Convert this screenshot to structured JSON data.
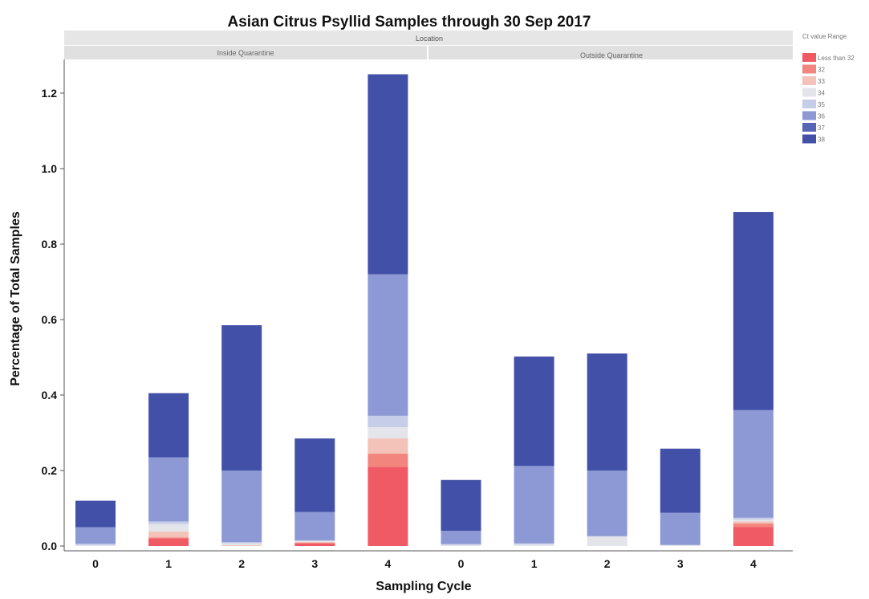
{
  "chart_data": {
    "type": "bar",
    "stacked": true,
    "title": "Asian Citrus Psyllid Samples through 30 Sep 2017",
    "xlabel": "Sampling Cycle",
    "ylabel": "Percentage of Total Samples",
    "ylim": [
      0,
      1.3
    ],
    "yticks": [
      0.0,
      0.2,
      0.4,
      0.6,
      0.8,
      1.0,
      1.2
    ],
    "ytick_labels": [
      "0.0",
      "0.2",
      "0.4",
      "0.6",
      "0.8",
      "1.0",
      "1.2"
    ],
    "grid": false,
    "group_header": "Location",
    "groups": [
      {
        "name": "Inside Quarantine",
        "categories": [
          "0",
          "1",
          "2",
          "3",
          "4"
        ]
      },
      {
        "name": "Outside Quarantine",
        "categories": [
          "0",
          "1",
          "2",
          "3",
          "4"
        ]
      }
    ],
    "legend": {
      "title": "Ct value Range",
      "placement": "right",
      "entries": [
        "Less than 32",
        "32",
        "33",
        "34",
        "35",
        "36",
        "37",
        "38"
      ]
    },
    "series": [
      {
        "name": "Less than 32",
        "color": "#f05a64",
        "values": [
          0,
          0.02,
          0,
          0.007,
          0.21,
          0,
          0,
          0,
          0,
          0.05
        ]
      },
      {
        "name": "32",
        "color": "#f3857f",
        "values": [
          0,
          0.003,
          0,
          0.002,
          0.035,
          0,
          0,
          0,
          0,
          0.01
        ]
      },
      {
        "name": "33",
        "color": "#f3c2b8",
        "values": [
          0,
          0.015,
          0.002,
          0.002,
          0.04,
          0,
          0,
          0,
          0,
          0.005
        ]
      },
      {
        "name": "34",
        "color": "#e4e5ea",
        "values": [
          0.002,
          0.02,
          0.005,
          0.002,
          0.03,
          0.003,
          0.004,
          0.025,
          0.002,
          0.005
        ]
      },
      {
        "name": "35",
        "color": "#c6cde8",
        "values": [
          0.004,
          0.007,
          0.003,
          0.002,
          0.03,
          0.002,
          0.003,
          0.001,
          0.001,
          0.005
        ]
      },
      {
        "name": "36",
        "color": "#8d99d4",
        "values": [
          0.044,
          0.17,
          0.19,
          0.075,
          0.375,
          0.035,
          0.205,
          0.174,
          0.085,
          0.285
        ]
      },
      {
        "name": "37",
        "color": "#5866b7",
        "values": [
          0,
          0,
          0,
          0,
          0,
          0,
          0,
          0,
          0,
          0
        ]
      },
      {
        "name": "38",
        "color": "#4350a8",
        "values": [
          0.07,
          0.17,
          0.385,
          0.195,
          0.53,
          0.135,
          0.29,
          0.31,
          0.17,
          0.525
        ]
      }
    ]
  }
}
